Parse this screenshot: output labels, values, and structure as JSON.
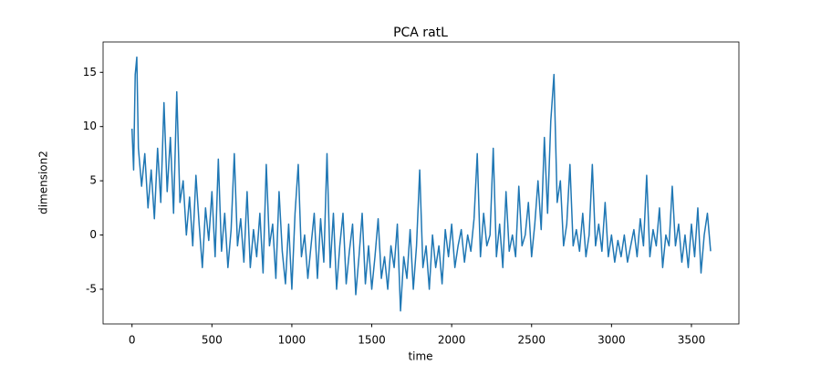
{
  "chart_data": {
    "type": "line",
    "title": "PCA ratL",
    "x_label": "time",
    "y_label": "dimension2",
    "xlim": [
      -181,
      3797
    ],
    "ylim": [
      -8.2,
      17.8
    ],
    "xticks": [
      0,
      500,
      1000,
      1500,
      2000,
      2500,
      3000,
      3500
    ],
    "yticks": [
      -5,
      0,
      5,
      10,
      15
    ],
    "grid": false,
    "series": [
      {
        "name": "dimension2",
        "color": "#1f77b4",
        "x": [
          0,
          10,
          20,
          30,
          40,
          60,
          80,
          100,
          120,
          140,
          160,
          180,
          200,
          220,
          240,
          260,
          280,
          300,
          320,
          340,
          360,
          380,
          400,
          420,
          440,
          460,
          480,
          500,
          520,
          540,
          560,
          580,
          600,
          620,
          640,
          660,
          680,
          700,
          720,
          740,
          760,
          780,
          800,
          820,
          840,
          860,
          880,
          900,
          920,
          940,
          960,
          980,
          1000,
          1020,
          1040,
          1060,
          1080,
          1100,
          1120,
          1140,
          1160,
          1180,
          1200,
          1220,
          1240,
          1260,
          1280,
          1300,
          1320,
          1340,
          1360,
          1380,
          1400,
          1420,
          1440,
          1460,
          1480,
          1500,
          1520,
          1540,
          1560,
          1580,
          1600,
          1620,
          1640,
          1660,
          1680,
          1700,
          1720,
          1740,
          1760,
          1780,
          1800,
          1820,
          1840,
          1860,
          1880,
          1900,
          1920,
          1940,
          1960,
          1980,
          2000,
          2020,
          2040,
          2060,
          2080,
          2100,
          2120,
          2140,
          2160,
          2180,
          2200,
          2220,
          2240,
          2260,
          2280,
          2300,
          2320,
          2340,
          2360,
          2380,
          2400,
          2420,
          2440,
          2460,
          2480,
          2500,
          2520,
          2540,
          2560,
          2580,
          2600,
          2620,
          2640,
          2660,
          2680,
          2700,
          2720,
          2740,
          2760,
          2780,
          2800,
          2820,
          2840,
          2860,
          2880,
          2900,
          2920,
          2940,
          2960,
          2980,
          3000,
          3020,
          3040,
          3060,
          3080,
          3100,
          3120,
          3140,
          3160,
          3180,
          3200,
          3220,
          3240,
          3260,
          3280,
          3300,
          3320,
          3340,
          3360,
          3380,
          3400,
          3420,
          3440,
          3460,
          3480,
          3500,
          3520,
          3540,
          3560,
          3580,
          3600,
          3620
        ],
        "values": [
          9.8,
          6,
          14.8,
          16.4,
          8,
          4.5,
          7.5,
          2.5,
          6,
          1.5,
          8,
          3,
          12.2,
          4,
          9,
          2,
          13.2,
          3,
          5,
          0,
          3.5,
          -1,
          5.5,
          1,
          -3,
          2.5,
          -0.5,
          4,
          -2,
          7,
          -1.5,
          2,
          -3,
          0.5,
          7.5,
          -1,
          1.5,
          -2.5,
          4,
          -3,
          0.5,
          -2,
          2,
          -3.5,
          6.5,
          -1,
          1,
          -4,
          4,
          -1.5,
          -4.5,
          1,
          -5,
          2,
          6.5,
          -2,
          0,
          -4,
          -1,
          2,
          -4,
          1.5,
          -2.5,
          7.5,
          -3,
          2,
          -5,
          -1,
          2,
          -4.5,
          -1.5,
          1,
          -5.5,
          -2,
          2,
          -4.5,
          -1,
          -5,
          -2,
          1.5,
          -4,
          -2,
          -5,
          -1,
          -3,
          1,
          -7,
          -2,
          -4,
          0.5,
          -5,
          -1,
          6,
          -3,
          -1,
          -5,
          0,
          -3,
          -1,
          -4.5,
          0.5,
          -2,
          1,
          -3,
          -1,
          0.5,
          -2.5,
          0,
          -1.5,
          1.5,
          7.5,
          -2,
          2,
          -1,
          0,
          8,
          -2,
          1,
          -3,
          4,
          -1.5,
          0,
          -2,
          4.5,
          -1,
          0,
          3,
          -2,
          1,
          5,
          0.5,
          9,
          2,
          10.5,
          14.8,
          3,
          5,
          -1,
          1,
          6.5,
          -1,
          0.5,
          -1.5,
          2,
          -2,
          0,
          6.5,
          -1,
          1,
          -1.5,
          3,
          -2,
          0,
          -2.5,
          -0.5,
          -2,
          0,
          -2.5,
          -1,
          0.5,
          -2,
          1.5,
          -1,
          5.5,
          -2,
          0.5,
          -1,
          2.5,
          -3,
          0,
          -1,
          4.5,
          -1,
          1,
          -2.5,
          0,
          -3,
          1,
          -2,
          2.5,
          -3.5,
          0,
          2,
          -1.5
        ]
      }
    ]
  }
}
